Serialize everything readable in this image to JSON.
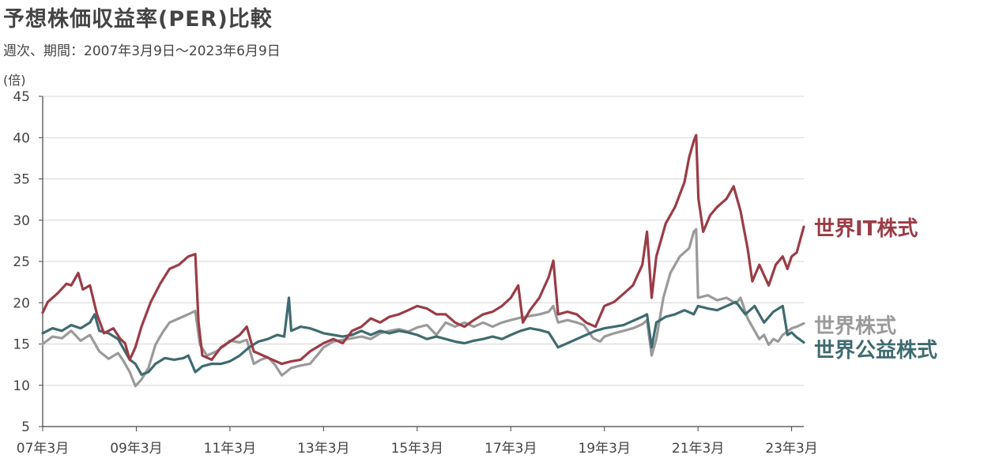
{
  "chart_data": {
    "type": "line",
    "title": "予想株価収益率(PER)比較",
    "subtitle": "週次、期間：2007年3月9日～2023年6月9日",
    "ylabel": "(倍)",
    "ylim": [
      5,
      45
    ],
    "yticks": [
      5,
      10,
      15,
      20,
      25,
      30,
      35,
      40,
      45
    ],
    "xlim": [
      2007.19,
      2023.45
    ],
    "xticks": [
      {
        "label": "07年3月",
        "x": 2007.19
      },
      {
        "label": "09年3月",
        "x": 2009.19
      },
      {
        "label": "11年3月",
        "x": 2011.19
      },
      {
        "label": "13年3月",
        "x": 2013.19
      },
      {
        "label": "15年3月",
        "x": 2015.19
      },
      {
        "label": "17年3月",
        "x": 2017.19
      },
      {
        "label": "19年3月",
        "x": 2019.19
      },
      {
        "label": "21年3月",
        "x": 2021.19
      },
      {
        "label": "23年3月",
        "x": 2023.19
      }
    ],
    "grid": "horizontal",
    "series": [
      {
        "name": "世界株式",
        "color": "#9a9a9a",
        "points": [
          [
            2007.19,
            15.0
          ],
          [
            2007.4,
            15.9
          ],
          [
            2007.6,
            15.7
          ],
          [
            2007.8,
            16.6
          ],
          [
            2008.0,
            15.4
          ],
          [
            2008.2,
            16.1
          ],
          [
            2008.4,
            14.1
          ],
          [
            2008.6,
            13.2
          ],
          [
            2008.8,
            13.9
          ],
          [
            2008.9,
            13.1
          ],
          [
            2009.05,
            11.6
          ],
          [
            2009.17,
            9.9
          ],
          [
            2009.3,
            10.7
          ],
          [
            2009.45,
            12.1
          ],
          [
            2009.6,
            14.9
          ],
          [
            2009.75,
            16.4
          ],
          [
            2009.9,
            17.6
          ],
          [
            2010.1,
            18.1
          ],
          [
            2010.3,
            18.6
          ],
          [
            2010.45,
            19.0
          ],
          [
            2010.55,
            14.9
          ],
          [
            2010.7,
            13.6
          ],
          [
            2010.9,
            14.1
          ],
          [
            2011.1,
            14.9
          ],
          [
            2011.19,
            15.4
          ],
          [
            2011.4,
            15.2
          ],
          [
            2011.55,
            15.5
          ],
          [
            2011.7,
            12.6
          ],
          [
            2011.85,
            13.1
          ],
          [
            2012.0,
            13.4
          ],
          [
            2012.15,
            12.5
          ],
          [
            2012.3,
            11.2
          ],
          [
            2012.5,
            12.1
          ],
          [
            2012.7,
            12.4
          ],
          [
            2012.9,
            12.6
          ],
          [
            2013.05,
            13.6
          ],
          [
            2013.19,
            14.6
          ],
          [
            2013.4,
            15.3
          ],
          [
            2013.6,
            15.5
          ],
          [
            2013.8,
            15.7
          ],
          [
            2014.0,
            15.9
          ],
          [
            2014.2,
            15.6
          ],
          [
            2014.4,
            16.3
          ],
          [
            2014.6,
            16.6
          ],
          [
            2014.8,
            16.8
          ],
          [
            2015.0,
            16.5
          ],
          [
            2015.19,
            17.0
          ],
          [
            2015.4,
            17.3
          ],
          [
            2015.6,
            16.1
          ],
          [
            2015.8,
            17.6
          ],
          [
            2016.0,
            17.1
          ],
          [
            2016.2,
            17.6
          ],
          [
            2016.4,
            17.1
          ],
          [
            2016.6,
            17.6
          ],
          [
            2016.8,
            17.1
          ],
          [
            2017.0,
            17.6
          ],
          [
            2017.19,
            17.9
          ],
          [
            2017.4,
            18.2
          ],
          [
            2017.6,
            18.4
          ],
          [
            2017.8,
            18.6
          ],
          [
            2018.0,
            18.9
          ],
          [
            2018.1,
            19.6
          ],
          [
            2018.2,
            17.6
          ],
          [
            2018.4,
            17.9
          ],
          [
            2018.6,
            17.6
          ],
          [
            2018.75,
            17.3
          ],
          [
            2018.95,
            15.7
          ],
          [
            2019.1,
            15.3
          ],
          [
            2019.19,
            15.9
          ],
          [
            2019.4,
            16.3
          ],
          [
            2019.6,
            16.6
          ],
          [
            2019.8,
            16.9
          ],
          [
            2020.0,
            17.4
          ],
          [
            2020.1,
            17.9
          ],
          [
            2020.2,
            13.6
          ],
          [
            2020.3,
            15.6
          ],
          [
            2020.45,
            20.6
          ],
          [
            2020.6,
            23.6
          ],
          [
            2020.8,
            25.6
          ],
          [
            2021.0,
            26.6
          ],
          [
            2021.1,
            28.6
          ],
          [
            2021.15,
            28.9
          ],
          [
            2021.19,
            20.6
          ],
          [
            2021.4,
            20.9
          ],
          [
            2021.6,
            20.3
          ],
          [
            2021.8,
            20.6
          ],
          [
            2022.0,
            19.9
          ],
          [
            2022.1,
            20.6
          ],
          [
            2022.25,
            18.1
          ],
          [
            2022.4,
            16.6
          ],
          [
            2022.5,
            15.6
          ],
          [
            2022.6,
            16.1
          ],
          [
            2022.7,
            14.9
          ],
          [
            2022.8,
            15.6
          ],
          [
            2022.9,
            15.3
          ],
          [
            2023.0,
            16.1
          ],
          [
            2023.19,
            16.9
          ],
          [
            2023.3,
            17.1
          ],
          [
            2023.45,
            17.5
          ]
        ]
      },
      {
        "name": "世界公益株式",
        "color": "#3f6b70",
        "points": [
          [
            2007.19,
            16.3
          ],
          [
            2007.4,
            16.9
          ],
          [
            2007.6,
            16.6
          ],
          [
            2007.8,
            17.3
          ],
          [
            2008.0,
            16.9
          ],
          [
            2008.2,
            17.6
          ],
          [
            2008.3,
            18.6
          ],
          [
            2008.4,
            16.6
          ],
          [
            2008.6,
            16.3
          ],
          [
            2008.8,
            15.6
          ],
          [
            2008.9,
            14.6
          ],
          [
            2009.05,
            13.1
          ],
          [
            2009.17,
            12.6
          ],
          [
            2009.3,
            11.3
          ],
          [
            2009.45,
            11.6
          ],
          [
            2009.6,
            12.6
          ],
          [
            2009.8,
            13.3
          ],
          [
            2010.0,
            13.1
          ],
          [
            2010.2,
            13.3
          ],
          [
            2010.3,
            13.6
          ],
          [
            2010.45,
            11.6
          ],
          [
            2010.6,
            12.3
          ],
          [
            2010.8,
            12.6
          ],
          [
            2011.0,
            12.6
          ],
          [
            2011.19,
            12.9
          ],
          [
            2011.4,
            13.6
          ],
          [
            2011.6,
            14.6
          ],
          [
            2011.8,
            15.3
          ],
          [
            2012.0,
            15.6
          ],
          [
            2012.2,
            16.1
          ],
          [
            2012.35,
            15.9
          ],
          [
            2012.45,
            20.6
          ],
          [
            2012.5,
            16.6
          ],
          [
            2012.7,
            17.1
          ],
          [
            2012.9,
            16.9
          ],
          [
            2013.05,
            16.6
          ],
          [
            2013.19,
            16.3
          ],
          [
            2013.4,
            16.1
          ],
          [
            2013.6,
            15.9
          ],
          [
            2013.8,
            16.1
          ],
          [
            2014.0,
            16.6
          ],
          [
            2014.2,
            16.1
          ],
          [
            2014.4,
            16.6
          ],
          [
            2014.6,
            16.3
          ],
          [
            2014.8,
            16.6
          ],
          [
            2015.0,
            16.4
          ],
          [
            2015.19,
            16.1
          ],
          [
            2015.4,
            15.6
          ],
          [
            2015.6,
            15.9
          ],
          [
            2015.8,
            15.6
          ],
          [
            2016.0,
            15.3
          ],
          [
            2016.2,
            15.1
          ],
          [
            2016.4,
            15.4
          ],
          [
            2016.6,
            15.6
          ],
          [
            2016.8,
            15.9
          ],
          [
            2017.0,
            15.6
          ],
          [
            2017.19,
            16.1
          ],
          [
            2017.4,
            16.6
          ],
          [
            2017.6,
            16.9
          ],
          [
            2017.8,
            16.7
          ],
          [
            2018.0,
            16.4
          ],
          [
            2018.2,
            14.6
          ],
          [
            2018.4,
            15.1
          ],
          [
            2018.6,
            15.6
          ],
          [
            2018.8,
            16.1
          ],
          [
            2019.0,
            16.6
          ],
          [
            2019.19,
            16.9
          ],
          [
            2019.4,
            17.1
          ],
          [
            2019.6,
            17.3
          ],
          [
            2019.8,
            17.8
          ],
          [
            2020.0,
            18.3
          ],
          [
            2020.1,
            18.6
          ],
          [
            2020.2,
            14.6
          ],
          [
            2020.3,
            17.6
          ],
          [
            2020.5,
            18.3
          ],
          [
            2020.7,
            18.6
          ],
          [
            2020.9,
            19.1
          ],
          [
            2021.1,
            18.6
          ],
          [
            2021.19,
            19.6
          ],
          [
            2021.4,
            19.3
          ],
          [
            2021.6,
            19.1
          ],
          [
            2021.8,
            19.6
          ],
          [
            2022.0,
            20.1
          ],
          [
            2022.2,
            18.6
          ],
          [
            2022.4,
            19.6
          ],
          [
            2022.6,
            17.6
          ],
          [
            2022.8,
            18.9
          ],
          [
            2023.0,
            19.6
          ],
          [
            2023.1,
            16.1
          ],
          [
            2023.19,
            16.4
          ],
          [
            2023.3,
            15.8
          ],
          [
            2023.45,
            15.2
          ]
        ]
      },
      {
        "name": "世界IT株式",
        "color": "#9a3c46",
        "points": [
          [
            2007.19,
            18.8
          ],
          [
            2007.3,
            20.1
          ],
          [
            2007.5,
            21.1
          ],
          [
            2007.7,
            22.3
          ],
          [
            2007.8,
            22.1
          ],
          [
            2007.95,
            23.6
          ],
          [
            2008.05,
            21.6
          ],
          [
            2008.2,
            22.1
          ],
          [
            2008.35,
            18.6
          ],
          [
            2008.5,
            16.3
          ],
          [
            2008.7,
            16.9
          ],
          [
            2008.85,
            15.6
          ],
          [
            2008.95,
            15.1
          ],
          [
            2009.05,
            13.1
          ],
          [
            2009.17,
            14.6
          ],
          [
            2009.3,
            17.1
          ],
          [
            2009.5,
            20.1
          ],
          [
            2009.7,
            22.3
          ],
          [
            2009.9,
            24.1
          ],
          [
            2010.1,
            24.6
          ],
          [
            2010.3,
            25.6
          ],
          [
            2010.45,
            25.9
          ],
          [
            2010.52,
            17.6
          ],
          [
            2010.6,
            13.6
          ],
          [
            2010.8,
            13.1
          ],
          [
            2011.0,
            14.6
          ],
          [
            2011.19,
            15.3
          ],
          [
            2011.4,
            16.1
          ],
          [
            2011.55,
            17.1
          ],
          [
            2011.7,
            14.1
          ],
          [
            2011.9,
            13.6
          ],
          [
            2012.1,
            13.1
          ],
          [
            2012.3,
            12.6
          ],
          [
            2012.5,
            12.9
          ],
          [
            2012.7,
            13.1
          ],
          [
            2012.9,
            14.1
          ],
          [
            2013.19,
            15.1
          ],
          [
            2013.4,
            15.6
          ],
          [
            2013.6,
            15.1
          ],
          [
            2013.8,
            16.6
          ],
          [
            2014.0,
            17.1
          ],
          [
            2014.2,
            18.1
          ],
          [
            2014.4,
            17.6
          ],
          [
            2014.6,
            18.3
          ],
          [
            2014.8,
            18.6
          ],
          [
            2015.0,
            19.1
          ],
          [
            2015.19,
            19.6
          ],
          [
            2015.4,
            19.3
          ],
          [
            2015.6,
            18.6
          ],
          [
            2015.8,
            18.6
          ],
          [
            2016.0,
            17.6
          ],
          [
            2016.2,
            17.1
          ],
          [
            2016.4,
            17.9
          ],
          [
            2016.6,
            18.6
          ],
          [
            2016.8,
            18.9
          ],
          [
            2017.0,
            19.6
          ],
          [
            2017.19,
            20.6
          ],
          [
            2017.35,
            22.1
          ],
          [
            2017.45,
            17.6
          ],
          [
            2017.6,
            19.1
          ],
          [
            2017.8,
            20.6
          ],
          [
            2018.0,
            23.1
          ],
          [
            2018.1,
            25.1
          ],
          [
            2018.2,
            18.6
          ],
          [
            2018.4,
            18.9
          ],
          [
            2018.6,
            18.6
          ],
          [
            2018.8,
            17.6
          ],
          [
            2019.0,
            17.1
          ],
          [
            2019.19,
            19.6
          ],
          [
            2019.4,
            20.1
          ],
          [
            2019.6,
            21.1
          ],
          [
            2019.8,
            22.1
          ],
          [
            2020.0,
            24.6
          ],
          [
            2020.1,
            28.6
          ],
          [
            2020.2,
            20.6
          ],
          [
            2020.3,
            25.6
          ],
          [
            2020.5,
            29.6
          ],
          [
            2020.7,
            31.6
          ],
          [
            2020.9,
            34.6
          ],
          [
            2021.0,
            37.6
          ],
          [
            2021.1,
            39.6
          ],
          [
            2021.15,
            40.3
          ],
          [
            2021.2,
            32.6
          ],
          [
            2021.3,
            28.6
          ],
          [
            2021.45,
            30.6
          ],
          [
            2021.6,
            31.6
          ],
          [
            2021.8,
            32.6
          ],
          [
            2021.95,
            34.1
          ],
          [
            2022.1,
            31.1
          ],
          [
            2022.25,
            26.6
          ],
          [
            2022.35,
            22.6
          ],
          [
            2022.5,
            24.6
          ],
          [
            2022.7,
            22.1
          ],
          [
            2022.85,
            24.6
          ],
          [
            2023.0,
            25.6
          ],
          [
            2023.1,
            24.1
          ],
          [
            2023.19,
            25.6
          ],
          [
            2023.3,
            26.1
          ],
          [
            2023.45,
            29.2
          ]
        ]
      }
    ],
    "series_labels": [
      {
        "text": "世界IT株式",
        "color": "#9a3c46",
        "y": 29.0
      },
      {
        "text": "世界株式",
        "color": "#9a9a9a",
        "y": 17.2
      },
      {
        "text": "世界公益株式",
        "color": "#3f6b70",
        "y": 14.3
      }
    ]
  }
}
